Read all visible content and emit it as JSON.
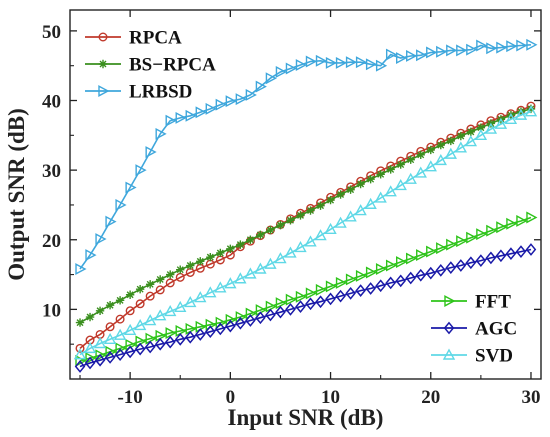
{
  "chart_data": {
    "type": "line",
    "xlabel": "Input SNR (dB)",
    "ylabel": "Output SNR (dB)",
    "xlim": [
      -16,
      31
    ],
    "ylim": [
      0,
      53
    ],
    "xticks": [
      -10,
      0,
      10,
      20,
      30
    ],
    "yticks": [
      10,
      20,
      30,
      40,
      50
    ],
    "grid": false,
    "legend_placement": [
      "top-left",
      "bottom-right"
    ],
    "x": [
      -15,
      -14,
      -13,
      -12,
      -11,
      -10,
      -9,
      -8,
      -7,
      -6,
      -5,
      -4,
      -3,
      -2,
      -1,
      0,
      1,
      2,
      3,
      4,
      5,
      6,
      7,
      8,
      9,
      10,
      11,
      12,
      13,
      14,
      15,
      16,
      17,
      18,
      19,
      20,
      21,
      22,
      23,
      24,
      25,
      26,
      27,
      28,
      29,
      30
    ],
    "series": [
      {
        "name": "RPCA",
        "color": "#c0392b",
        "marker": "circle",
        "group": "top",
        "values": [
          4.4,
          5.6,
          6.4,
          7.5,
          8.6,
          9.8,
          10.8,
          11.9,
          12.8,
          13.8,
          14.6,
          15.3,
          15.9,
          16.5,
          17.1,
          17.8,
          19.0,
          19.8,
          20.6,
          21.4,
          22.2,
          23.0,
          23.8,
          24.5,
          25.3,
          26.1,
          26.8,
          27.6,
          28.4,
          29.2,
          29.9,
          30.6,
          31.3,
          32.0,
          32.7,
          33.3,
          34.0,
          34.6,
          35.3,
          35.9,
          36.5,
          37.1,
          37.6,
          38.1,
          38.6,
          39.2
        ]
      },
      {
        "name": "BS−RPCA",
        "color": "#3a8f1e",
        "marker": "asterisk",
        "group": "top",
        "values": [
          8.1,
          8.9,
          9.8,
          10.6,
          11.3,
          12.1,
          12.9,
          13.6,
          14.3,
          15.0,
          15.7,
          16.3,
          16.9,
          17.5,
          18.1,
          18.7,
          19.3,
          20.0,
          20.7,
          21.4,
          22.1,
          22.8,
          23.5,
          24.2,
          24.9,
          25.7,
          26.5,
          27.2,
          28.0,
          28.7,
          29.4,
          30.1,
          30.8,
          31.5,
          32.2,
          32.9,
          33.6,
          34.2,
          34.9,
          35.5,
          36.1,
          36.7,
          37.3,
          37.9,
          38.4,
          38.8
        ]
      },
      {
        "name": "LRBSD",
        "color": "#3fa7dc",
        "marker": "triangle-right",
        "group": "top",
        "values": [
          15.8,
          17.8,
          20.1,
          22.6,
          25.0,
          27.5,
          30.0,
          32.6,
          35.2,
          37.1,
          37.5,
          37.8,
          38.3,
          38.8,
          39.4,
          39.9,
          40.2,
          40.8,
          42.0,
          43.2,
          44.1,
          44.6,
          45.1,
          45.6,
          45.7,
          45.4,
          45.4,
          45.5,
          45.5,
          45.2,
          45.0,
          46.6,
          46.1,
          46.4,
          46.5,
          46.9,
          47.0,
          47.2,
          47.2,
          47.3,
          47.9,
          47.5,
          47.6,
          47.8,
          47.9,
          48.0
        ]
      },
      {
        "name": "FFT",
        "color": "#2ec41a",
        "marker": "triangle-right",
        "group": "bottom",
        "values": [
          2.6,
          3.0,
          3.4,
          3.9,
          4.4,
          4.9,
          5.4,
          5.8,
          6.2,
          6.6,
          6.9,
          7.2,
          7.5,
          7.8,
          8.1,
          8.5,
          8.9,
          9.4,
          9.9,
          10.4,
          10.9,
          11.4,
          11.8,
          12.3,
          12.8,
          13.3,
          13.8,
          14.3,
          14.8,
          15.3,
          15.8,
          16.3,
          16.8,
          17.3,
          17.8,
          18.3,
          18.8,
          19.3,
          19.8,
          20.3,
          20.8,
          21.3,
          21.8,
          22.3,
          22.7,
          23.2
        ]
      },
      {
        "name": "AGC",
        "color": "#1a1aa8",
        "marker": "diamond",
        "group": "bottom",
        "values": [
          1.8,
          2.3,
          2.7,
          3.1,
          3.5,
          3.9,
          4.3,
          4.6,
          5.0,
          5.3,
          5.7,
          6.0,
          6.4,
          6.8,
          7.2,
          7.6,
          8.0,
          8.4,
          8.8,
          9.2,
          9.6,
          10.0,
          10.4,
          10.8,
          11.1,
          11.5,
          11.9,
          12.3,
          12.7,
          13.0,
          13.4,
          13.8,
          14.1,
          14.5,
          14.9,
          15.2,
          15.6,
          16.0,
          16.3,
          16.7,
          17.0,
          17.4,
          17.7,
          18.0,
          18.3,
          18.6
        ]
      },
      {
        "name": "SVD",
        "color": "#5fd8e6",
        "marker": "triangle-up",
        "group": "bottom",
        "values": [
          3.5,
          4.4,
          5.1,
          5.7,
          6.3,
          7.0,
          7.7,
          8.4,
          9.1,
          9.7,
          10.3,
          11.0,
          11.7,
          12.4,
          13.1,
          13.7,
          14.4,
          15.1,
          15.8,
          16.5,
          17.3,
          18.1,
          18.9,
          19.7,
          20.6,
          21.5,
          22.4,
          23.3,
          24.2,
          25.1,
          26.0,
          26.9,
          27.8,
          28.7,
          29.6,
          30.5,
          31.4,
          32.3,
          33.2,
          34.1,
          35.0,
          35.9,
          36.6,
          37.3,
          37.9,
          38.4
        ]
      }
    ]
  }
}
